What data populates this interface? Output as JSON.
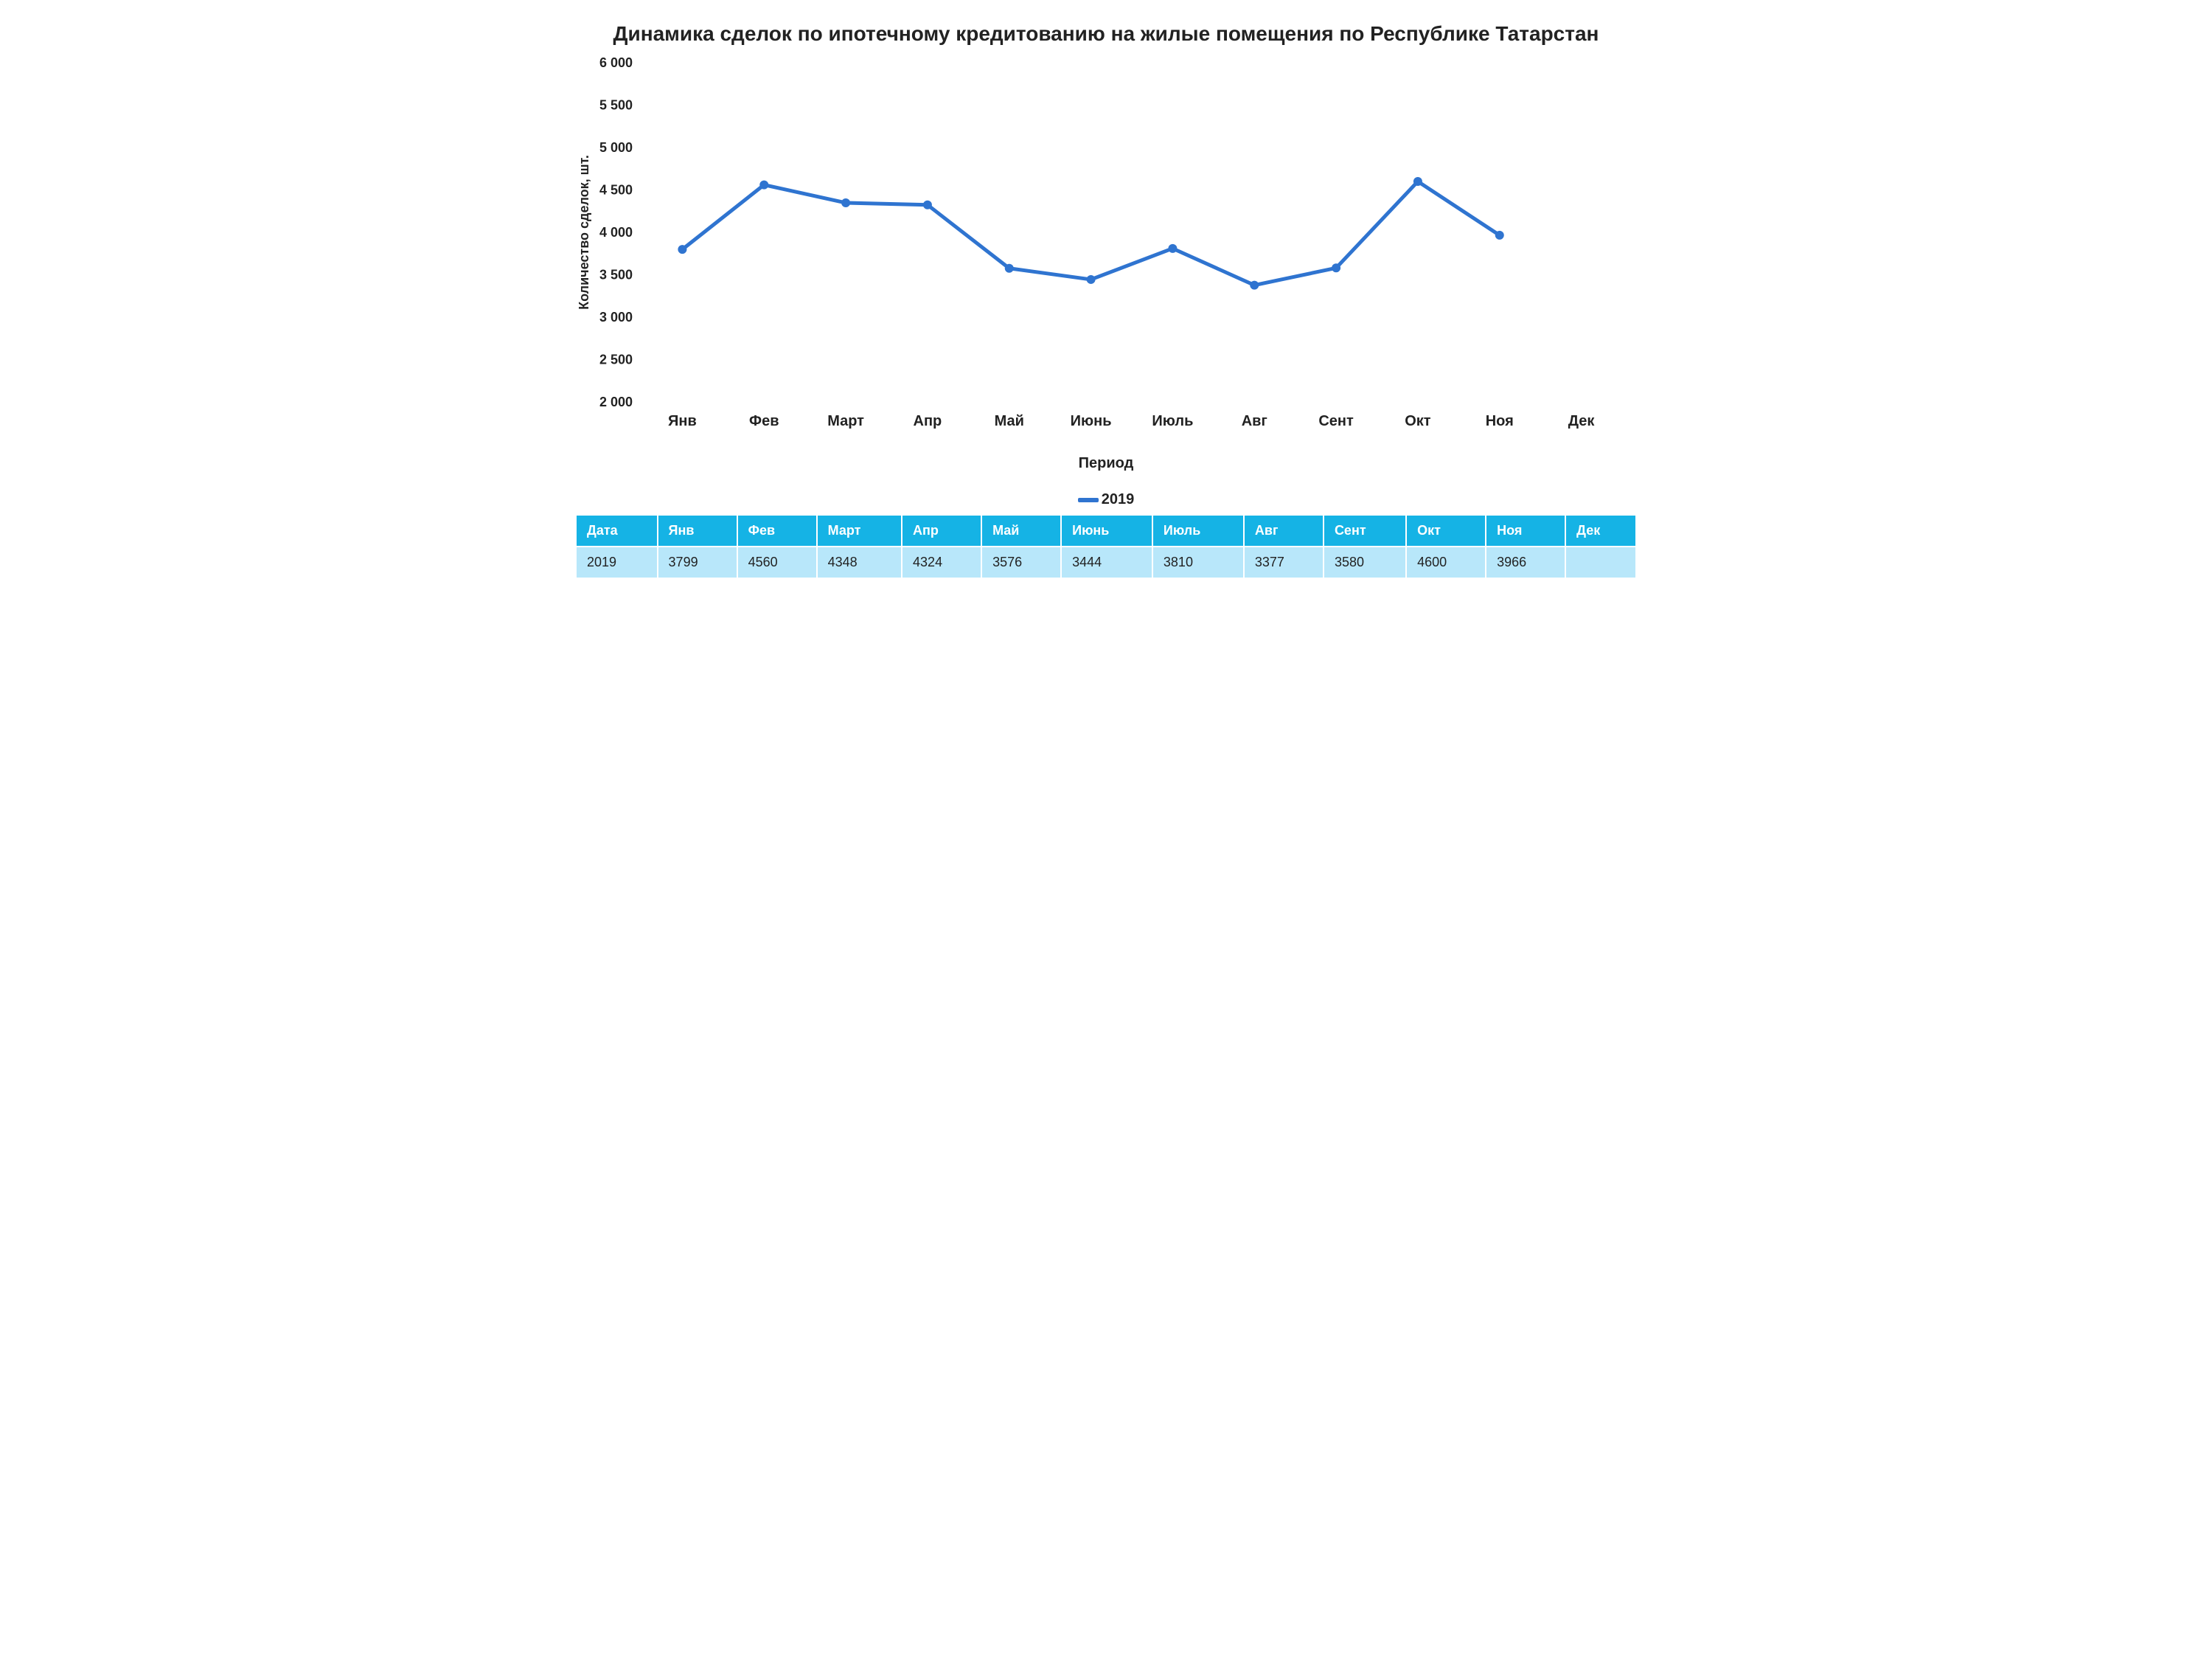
{
  "chart": {
    "type": "line",
    "title": "Динамика сделок по ипотечному кредитованию на жилые помещения по Республике Татарстан",
    "title_fontsize": 28,
    "title_fontweight": "bold",
    "xlabel": "Период",
    "ylabel": "Количество сделок, шт.",
    "label_fontsize": 18,
    "label_fontweight": "bold",
    "categories": [
      "Янв",
      "Фев",
      "Март",
      "Апр",
      "Май",
      "Июнь",
      "Июль",
      "Авг",
      "Сент",
      "Окт",
      "Ноя",
      "Дек"
    ],
    "series": [
      {
        "name": "2019",
        "color": "#2f74d0",
        "marker_color": "#2f74d0",
        "marker_style": "circle",
        "marker_size": 6,
        "line_width": 5,
        "values": [
          3799,
          4560,
          4348,
          4324,
          3576,
          3444,
          3810,
          3377,
          3580,
          4600,
          3966,
          null
        ]
      }
    ],
    "ylim": [
      2000,
      6000
    ],
    "ytick_step": 500,
    "ytick_labels": [
      "2 000",
      "2 500",
      "3 000",
      "3 500",
      "4 000",
      "4 500",
      "5 000",
      "5 500",
      "6 000"
    ],
    "grid": false,
    "background_color": "#ffffff",
    "axis_color": "#bfbfbf",
    "tick_font_color": "#222222",
    "legend_position": "bottom-center"
  },
  "legend": {
    "label": "2019"
  },
  "table": {
    "header_bg": "#15b3e5",
    "header_fg": "#ffffff",
    "row_bg": "#b8e7fa",
    "row_fg": "#222222",
    "border_color": "#ffffff",
    "columns": [
      "Дата",
      "Янв",
      "Фев",
      "Март",
      "Апр",
      "Май",
      "Июнь",
      "Июль",
      "Авг",
      "Сент",
      "Окт",
      "Ноя",
      "Дек"
    ],
    "rows": [
      [
        "2019",
        "3799",
        "4560",
        "4348",
        "4324",
        "3576",
        "3444",
        "3810",
        "3377",
        "3580",
        "4600",
        "3966",
        ""
      ]
    ]
  }
}
